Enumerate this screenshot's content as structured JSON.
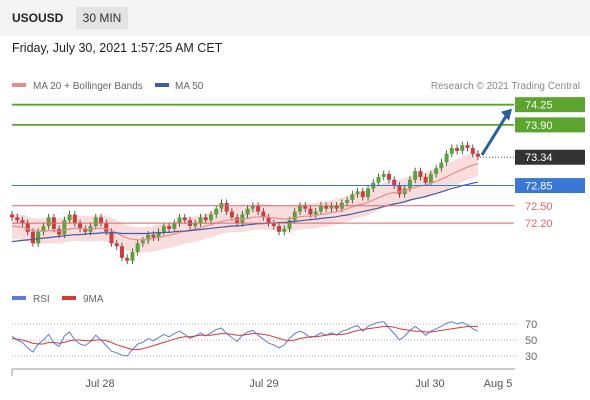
{
  "header": {
    "symbol": "USOUSD",
    "timeframe": "30 MIN",
    "datetime": "Friday, July 30, 2021 1:57:25 AM CET"
  },
  "colors": {
    "green": "#5ba52e",
    "blue": "#3a78d8",
    "red": "#e36464",
    "current": "#333333",
    "ma20": "#e98b8b",
    "ma50": "#3f5ba8",
    "band": "#f7d1d1",
    "arrow": "#2a5f9e",
    "candle_up": "#5aa33c",
    "candle_down": "#c93d3d",
    "rsi": "#5b7fd6",
    "rsi_ma": "#d33a3a"
  },
  "chart_data": {
    "type": "candlestick",
    "title": "",
    "legend": [
      {
        "name": "MA 20 + Bollinger Bands",
        "color": "#e98b8b"
      },
      {
        "name": "MA 50",
        "color": "#3f5ba8"
      }
    ],
    "watermark": "Research © 2021 Trading Central",
    "ylim": [
      71.25,
      74.4
    ],
    "x_ticks": [
      "Jul 28",
      "Jul 29",
      "Jul 30",
      "Aug 5"
    ],
    "price_levels": [
      {
        "value": 74.25,
        "label": "74.25",
        "kind": "resistance",
        "color": "#5ba52e"
      },
      {
        "value": 73.9,
        "label": "73.90",
        "kind": "resistance",
        "color": "#5ba52e"
      },
      {
        "value": 73.34,
        "label": "73.34",
        "kind": "current",
        "color": "#333333"
      },
      {
        "value": 72.85,
        "label": "72.85",
        "kind": "pivot",
        "color": "#3a78d8"
      },
      {
        "value": 72.5,
        "label": "72.50",
        "kind": "support",
        "color": "#e36464"
      },
      {
        "value": 72.2,
        "label": "72.20",
        "kind": "support",
        "color": "#e36464"
      }
    ],
    "target_arrow": {
      "from": 73.38,
      "to": 74.18
    },
    "closes": [
      72.3,
      72.25,
      72.2,
      72.05,
      71.85,
      72.05,
      72.15,
      72.3,
      72.1,
      72.0,
      72.25,
      72.35,
      72.2,
      72.1,
      72.05,
      72.15,
      72.3,
      72.2,
      72.05,
      71.85,
      71.8,
      71.6,
      71.55,
      71.7,
      71.85,
      71.9,
      72.0,
      71.95,
      72.05,
      72.15,
      72.1,
      72.2,
      72.3,
      72.25,
      72.15,
      72.2,
      72.3,
      72.25,
      72.35,
      72.45,
      72.55,
      72.4,
      72.3,
      72.2,
      72.35,
      72.45,
      72.5,
      72.4,
      72.3,
      72.2,
      72.15,
      72.05,
      72.1,
      72.25,
      72.4,
      72.5,
      72.45,
      72.35,
      72.4,
      72.5,
      72.45,
      72.5,
      72.45,
      72.55,
      72.6,
      72.7,
      72.75,
      72.65,
      72.8,
      72.9,
      73.0,
      73.05,
      72.95,
      72.85,
      72.7,
      72.8,
      72.95,
      73.1,
      73.0,
      72.9,
      73.05,
      73.15,
      73.25,
      73.4,
      73.5,
      73.45,
      73.55,
      73.5,
      73.4,
      73.35
    ],
    "ma20": [
      72.15,
      72.14,
      72.13,
      72.1,
      72.07,
      72.06,
      72.06,
      72.07,
      72.07,
      72.06,
      72.08,
      72.1,
      72.11,
      72.11,
      72.1,
      72.1,
      72.11,
      72.11,
      72.1,
      72.07,
      72.03,
      71.98,
      71.94,
      71.92,
      71.91,
      71.91,
      71.92,
      71.93,
      71.95,
      71.97,
      71.99,
      72.01,
      72.04,
      72.06,
      72.08,
      72.1,
      72.12,
      72.15,
      72.17,
      72.2,
      72.23,
      72.25,
      72.26,
      72.26,
      72.27,
      72.28,
      72.3,
      72.31,
      72.31,
      72.3,
      72.29,
      72.28,
      72.27,
      72.28,
      72.29,
      72.31,
      72.32,
      72.32,
      72.33,
      72.35,
      72.36,
      72.38,
      72.4,
      72.42,
      72.45,
      72.48,
      72.51,
      72.53,
      72.56,
      72.6,
      72.64,
      72.68,
      72.71,
      72.73,
      72.74,
      72.76,
      72.79,
      72.82,
      72.84,
      72.86,
      72.89,
      72.92,
      72.96,
      73.0,
      73.05,
      73.09,
      73.13,
      73.17,
      73.2,
      73.23
    ],
    "ma50": [
      71.88,
      71.89,
      71.9,
      71.91,
      71.92,
      71.93,
      71.94,
      71.95,
      71.96,
      71.97,
      71.98,
      71.99,
      72.0,
      72.0,
      72.01,
      72.02,
      72.02,
      72.03,
      72.03,
      72.03,
      72.03,
      72.02,
      72.02,
      72.02,
      72.02,
      72.02,
      72.02,
      72.03,
      72.03,
      72.04,
      72.04,
      72.05,
      72.06,
      72.06,
      72.07,
      72.08,
      72.09,
      72.1,
      72.11,
      72.12,
      72.13,
      72.14,
      72.15,
      72.15,
      72.16,
      72.17,
      72.18,
      72.19,
      72.19,
      72.2,
      72.2,
      72.21,
      72.21,
      72.22,
      72.23,
      72.24,
      72.25,
      72.26,
      72.27,
      72.28,
      72.29,
      72.3,
      72.31,
      72.33,
      72.34,
      72.36,
      72.38,
      72.4,
      72.42,
      72.44,
      72.46,
      72.49,
      72.51,
      72.53,
      72.55,
      72.57,
      72.6,
      72.62,
      72.64,
      72.66,
      72.69,
      72.71,
      72.74,
      72.77,
      72.8,
      72.82,
      72.85,
      72.87,
      72.89,
      72.91
    ],
    "rsi_panel": {
      "legend": [
        {
          "name": "RSI",
          "color": "#5b7fd6"
        },
        {
          "name": "9MA",
          "color": "#d33a3a"
        }
      ],
      "ylim": [
        20,
        80
      ],
      "y_ticks": [
        70,
        50,
        30
      ],
      "rsi": [
        55,
        50,
        47,
        40,
        35,
        45,
        50,
        57,
        46,
        42,
        55,
        60,
        50,
        45,
        43,
        48,
        56,
        50,
        43,
        36,
        34,
        31,
        30,
        38,
        45,
        47,
        52,
        49,
        53,
        57,
        54,
        58,
        61,
        57,
        52,
        55,
        59,
        55,
        59,
        63,
        65,
        58,
        53,
        48,
        56,
        60,
        62,
        56,
        51,
        46,
        44,
        40,
        44,
        52,
        58,
        61,
        58,
        53,
        55,
        59,
        56,
        59,
        56,
        61,
        63,
        66,
        68,
        61,
        67,
        70,
        72,
        73,
        65,
        58,
        50,
        55,
        62,
        67,
        62,
        56,
        61,
        64,
        67,
        71,
        73,
        70,
        72,
        69,
        64,
        61
      ],
      "rsi_ma": [
        52,
        51,
        50,
        48,
        46,
        45,
        45,
        47,
        47,
        46,
        47,
        49,
        50,
        50,
        49,
        49,
        50,
        50,
        49,
        47,
        44,
        42,
        40,
        38,
        38,
        39,
        41,
        43,
        45,
        47,
        49,
        51,
        53,
        54,
        54,
        55,
        56,
        56,
        56,
        57,
        58,
        58,
        57,
        56,
        56,
        57,
        58,
        58,
        57,
        56,
        54,
        52,
        50,
        49,
        50,
        52,
        53,
        54,
        54,
        55,
        56,
        57,
        57,
        57,
        58,
        60,
        62,
        63,
        64,
        65,
        66,
        67,
        67,
        66,
        64,
        63,
        62,
        61,
        61,
        60,
        60,
        61,
        62,
        63,
        64,
        65,
        66,
        67,
        67,
        67
      ]
    }
  }
}
